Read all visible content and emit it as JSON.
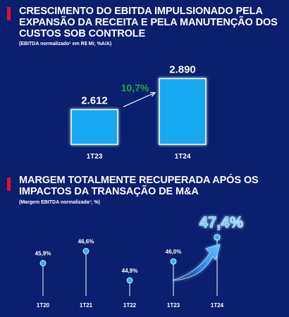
{
  "colors": {
    "background": "#0a1f6e",
    "accent": "#e3122b",
    "bar_fill": "#19a8f0",
    "bar_border": "#ffffff",
    "growth_label": "#22a845",
    "dot": "#2fb2ee",
    "highlight_label": "#5cc8ff"
  },
  "section1": {
    "title": "CRESCIMENTO DO EBITDA IMPULSIONADO PELA EXPANSÃO DA RECEITA E PELA MANUTENÇÃO DOS CUSTOS SOB CONTROLE",
    "subtitle": "(EBITDA normalizado¹ em R$ Mi; %A/A)"
  },
  "section2": {
    "title": "MARGEM TOTALMENTE RECUPERADA APÓS OS IMPACTOS DA TRANSAÇÃO DE M&A",
    "subtitle": "(Margem EBITDA normalizada¹; %)"
  },
  "chart_data": [
    {
      "type": "bar",
      "categories": [
        "1T23",
        "1T24"
      ],
      "values": [
        2612,
        2890
      ],
      "value_labels": [
        "2.612",
        "2.890"
      ],
      "growth_label": "10,7%",
      "title": "CRESCIMENTO DO EBITDA IMPULSIONADO PELA EXPANSÃO DA RECEITA E PELA MANUTENÇÃO DOS CUSTOS SOB CONTROLE",
      "subtitle": "(EBITDA normalizado¹ em R$ Mi; %A/A)",
      "ylim": [
        2300,
        2950
      ]
    },
    {
      "type": "scatter",
      "categories": [
        "1T20",
        "1T21",
        "1T22",
        "1T23",
        "1T24"
      ],
      "values": [
        45.9,
        46.6,
        44.9,
        46.0,
        47.4
      ],
      "value_labels": [
        "45,9%",
        "46,6%",
        "44,9%",
        "46,0%",
        "47,4%"
      ],
      "highlight_index": 4,
      "title": "MARGEM TOTALMENTE RECUPERADA APÓS OS IMPACTOS DA TRANSAÇÃO DE M&A",
      "subtitle": "(Margem EBITDA normalizada¹; %)",
      "ylim": [
        44.0,
        47.6
      ]
    }
  ]
}
